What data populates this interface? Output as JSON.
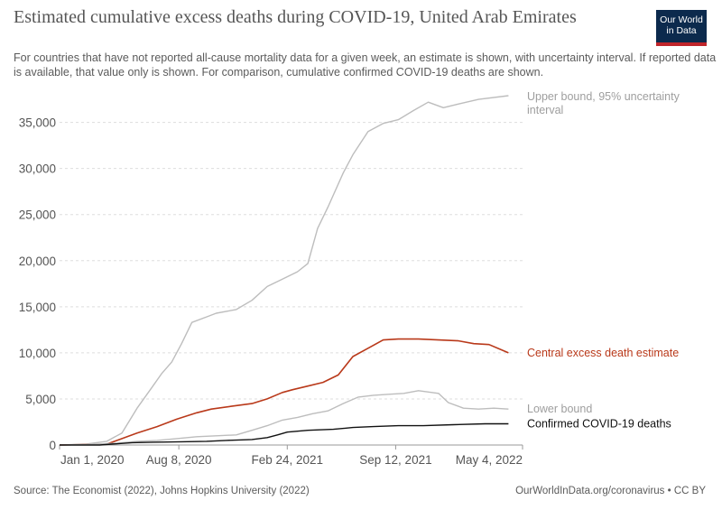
{
  "header": {
    "title": "Estimated cumulative excess deaths during COVID-19, United Arab Emirates",
    "subtitle": "For countries that have not reported all-cause mortality data for a given week, an estimate is shown, with uncertainty interval. If reported data is available, that value only is shown. For comparison, cumulative confirmed COVID-19 deaths are shown.",
    "logo_line1": "Our World",
    "logo_line2": "in Data"
  },
  "footer": {
    "source": "Source: The Economist (2022), Johns Hopkins University (2022)",
    "license": "OurWorldInData.org/coronavirus • CC BY"
  },
  "colors": {
    "upper": "#bdbdbd",
    "central": "#b9391a",
    "lower": "#bdbdbd",
    "confirmed": "#111111",
    "grid": "#dddddd",
    "upper_label": "#9e9e9e",
    "lower_label": "#9e9e9e",
    "confirmed_label": "#111111",
    "central_label": "#b9391a"
  },
  "chart_data": {
    "type": "line",
    "x_unit": "date",
    "x_ticks": [
      "2020-01-01",
      "2020-08-08",
      "2021-02-24",
      "2021-09-12",
      "2022-05-04"
    ],
    "x_tick_labels": [
      "Jan 1, 2020",
      "Aug 8, 2020",
      "Feb 24, 2021",
      "Sep 12, 2021",
      "May 4, 2022"
    ],
    "xlim": [
      "2020-01-01",
      "2022-05-04"
    ],
    "y_ticks": [
      0,
      5000,
      10000,
      15000,
      20000,
      25000,
      30000,
      35000
    ],
    "y_tick_labels": [
      "0",
      "5,000",
      "10,000",
      "15,000",
      "20,000",
      "25,000",
      "30,000",
      "35,000"
    ],
    "ylim": [
      0,
      38000
    ],
    "grid": "horizontal dashed",
    "series": [
      {
        "key": "upper",
        "name": "Upper bound, 95% uncertainty interval",
        "points": [
          [
            "2020-01-01",
            0
          ],
          [
            "2020-02-19",
            100
          ],
          [
            "2020-03-28",
            400
          ],
          [
            "2020-04-25",
            1300
          ],
          [
            "2020-05-23",
            4000
          ],
          [
            "2020-06-20",
            6300
          ],
          [
            "2020-07-08",
            7800
          ],
          [
            "2020-07-26",
            9000
          ],
          [
            "2020-08-13",
            11000
          ],
          [
            "2020-09-01",
            13300
          ],
          [
            "2020-09-28",
            13900
          ],
          [
            "2020-10-16",
            14300
          ],
          [
            "2020-11-22",
            14700
          ],
          [
            "2020-12-21",
            15700
          ],
          [
            "2021-01-18",
            17200
          ],
          [
            "2021-02-15",
            18000
          ],
          [
            "2021-03-15",
            18800
          ],
          [
            "2021-04-03",
            19700
          ],
          [
            "2021-04-21",
            23500
          ],
          [
            "2021-05-10",
            25800
          ],
          [
            "2021-06-07",
            29500
          ],
          [
            "2021-06-25",
            31500
          ],
          [
            "2021-07-23",
            34000
          ],
          [
            "2021-08-20",
            34900
          ],
          [
            "2021-09-17",
            35300
          ],
          [
            "2021-10-15",
            36300
          ],
          [
            "2021-11-11",
            37200
          ],
          [
            "2021-12-09",
            36600
          ],
          [
            "2022-01-06",
            37000
          ],
          [
            "2022-02-12",
            37500
          ],
          [
            "2022-04-08",
            37900
          ]
        ]
      },
      {
        "key": "central",
        "name": "Central excess death estimate",
        "points": [
          [
            "2020-01-01",
            0
          ],
          [
            "2020-03-28",
            100
          ],
          [
            "2020-04-16",
            500
          ],
          [
            "2020-05-23",
            1300
          ],
          [
            "2020-06-29",
            2000
          ],
          [
            "2020-08-04",
            2800
          ],
          [
            "2020-09-10",
            3500
          ],
          [
            "2020-10-07",
            3900
          ],
          [
            "2020-11-13",
            4200
          ],
          [
            "2020-12-21",
            4500
          ],
          [
            "2021-01-18",
            5000
          ],
          [
            "2021-02-15",
            5700
          ],
          [
            "2021-03-06",
            6000
          ],
          [
            "2021-04-03",
            6400
          ],
          [
            "2021-05-01",
            6800
          ],
          [
            "2021-05-29",
            7600
          ],
          [
            "2021-06-25",
            9600
          ],
          [
            "2021-07-23",
            10500
          ],
          [
            "2021-08-20",
            11400
          ],
          [
            "2021-09-17",
            11500
          ],
          [
            "2021-10-24",
            11500
          ],
          [
            "2021-11-30",
            11400
          ],
          [
            "2022-01-06",
            11300
          ],
          [
            "2022-02-03",
            11000
          ],
          [
            "2022-03-03",
            10900
          ],
          [
            "2022-04-08",
            10000
          ]
        ]
      },
      {
        "key": "lower",
        "name": "Lower bound",
        "points": [
          [
            "2020-01-01",
            0
          ],
          [
            "2020-02-19",
            50
          ],
          [
            "2020-04-16",
            200
          ],
          [
            "2020-05-23",
            400
          ],
          [
            "2020-06-29",
            500
          ],
          [
            "2020-08-04",
            700
          ],
          [
            "2020-09-10",
            900
          ],
          [
            "2020-10-16",
            1000
          ],
          [
            "2020-11-22",
            1100
          ],
          [
            "2020-12-21",
            1600
          ],
          [
            "2021-01-18",
            2100
          ],
          [
            "2021-02-15",
            2700
          ],
          [
            "2021-03-15",
            3000
          ],
          [
            "2021-04-12",
            3400
          ],
          [
            "2021-05-10",
            3700
          ],
          [
            "2021-06-07",
            4500
          ],
          [
            "2021-07-05",
            5200
          ],
          [
            "2021-08-02",
            5400
          ],
          [
            "2021-08-30",
            5500
          ],
          [
            "2021-09-27",
            5600
          ],
          [
            "2021-10-24",
            5900
          ],
          [
            "2021-11-30",
            5600
          ],
          [
            "2021-12-18",
            4600
          ],
          [
            "2022-01-15",
            4000
          ],
          [
            "2022-02-12",
            3900
          ],
          [
            "2022-03-12",
            4000
          ],
          [
            "2022-04-08",
            3900
          ]
        ]
      },
      {
        "key": "confirmed",
        "name": "Confirmed COVID-19 deaths",
        "points": [
          [
            "2020-01-01",
            0
          ],
          [
            "2020-03-15",
            0
          ],
          [
            "2020-04-06",
            100
          ],
          [
            "2020-05-14",
            250
          ],
          [
            "2020-06-20",
            300
          ],
          [
            "2020-08-13",
            350
          ],
          [
            "2020-09-28",
            400
          ],
          [
            "2020-11-04",
            500
          ],
          [
            "2020-12-21",
            600
          ],
          [
            "2021-01-18",
            800
          ],
          [
            "2021-02-06",
            1100
          ],
          [
            "2021-02-24",
            1400
          ],
          [
            "2021-04-03",
            1600
          ],
          [
            "2021-05-20",
            1700
          ],
          [
            "2021-06-25",
            1900
          ],
          [
            "2021-08-02",
            2000
          ],
          [
            "2021-09-17",
            2100
          ],
          [
            "2021-11-02",
            2100
          ],
          [
            "2021-12-27",
            2200
          ],
          [
            "2022-02-24",
            2300
          ],
          [
            "2022-04-08",
            2300
          ]
        ]
      }
    ]
  }
}
